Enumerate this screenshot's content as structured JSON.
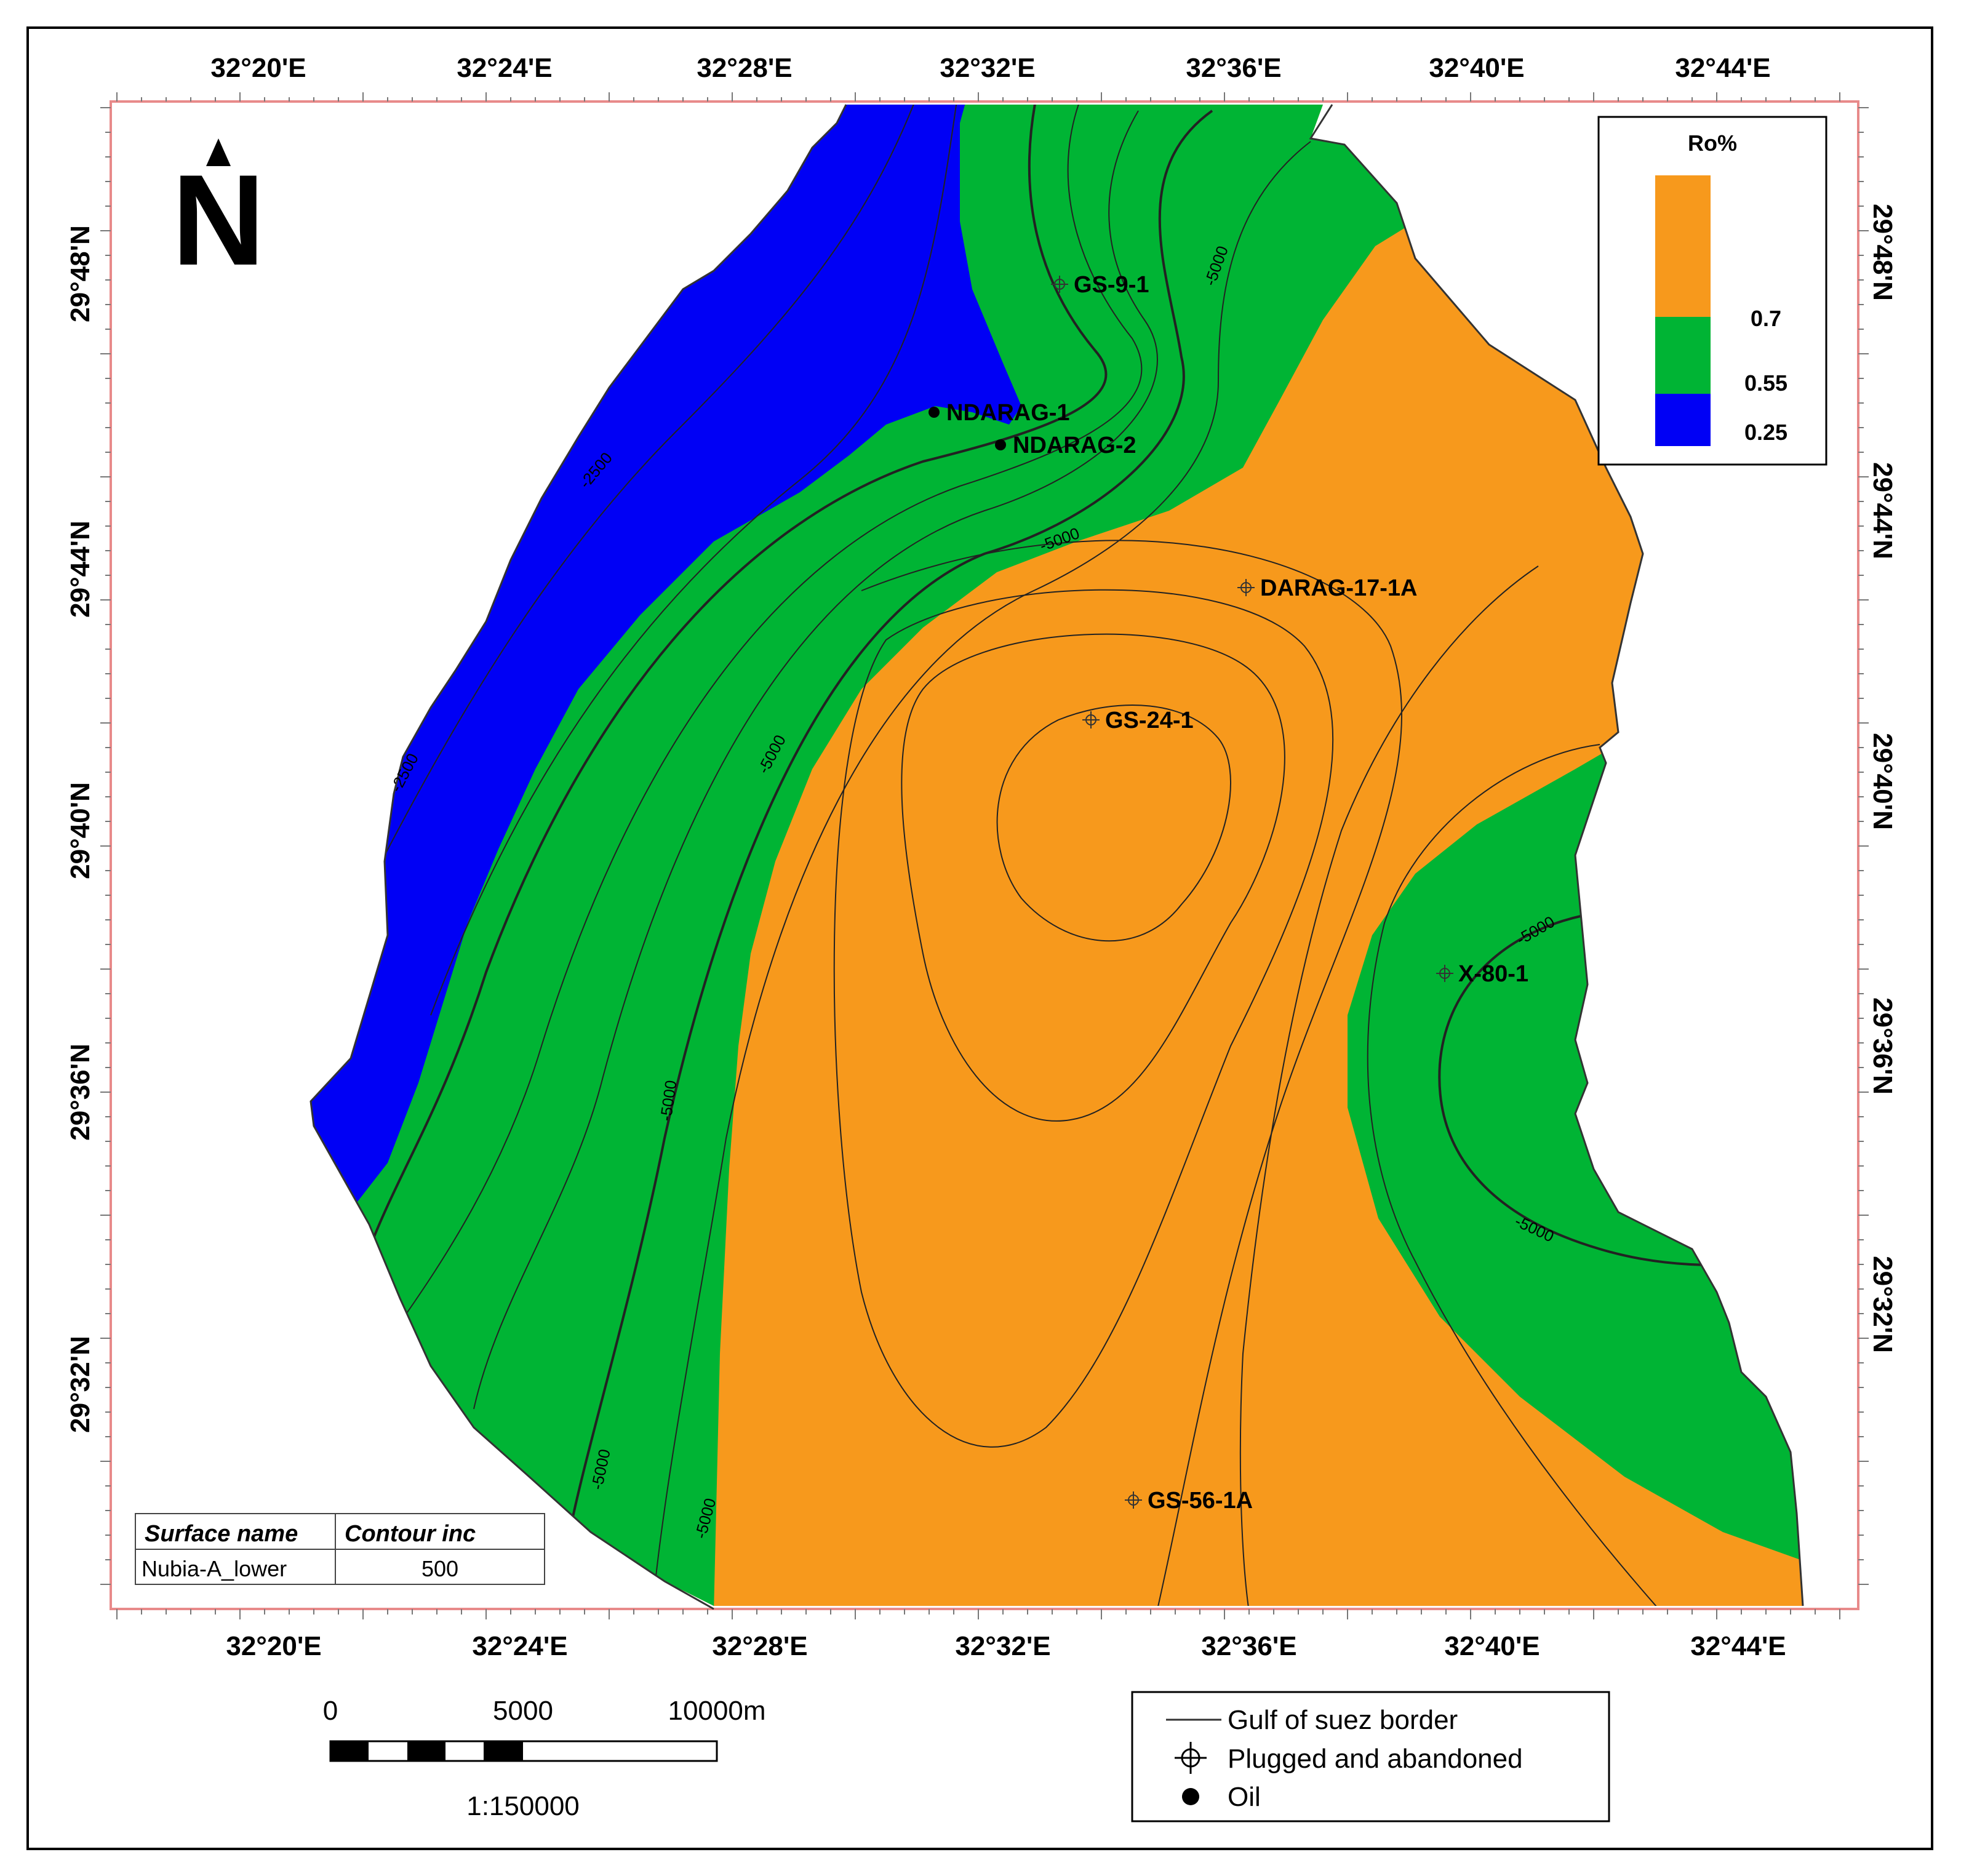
{
  "axes": {
    "top_longitudes": [
      "32°20'E",
      "32°24'E",
      "32°28'E",
      "32°32'E",
      "32°36'E",
      "32°40'E",
      "32°44'E"
    ],
    "bottom_longitudes": [
      "32°20'E",
      "32°24'E",
      "32°28'E",
      "32°32'E",
      "32°36'E",
      "32°40'E",
      "32°44'E"
    ],
    "left_latitudes": [
      "29°48'N",
      "29°44'N",
      "29°40'N",
      "29°36'N",
      "29°32'N"
    ],
    "right_latitudes": [
      "29°48'N",
      "29°44'N",
      "29°40'N",
      "29°36'N",
      "29°32'N"
    ]
  },
  "north_arrow": {
    "label": "N"
  },
  "ro_legend": {
    "title": "Ro%",
    "breaks": [
      "0.7",
      "0.55",
      "0.25"
    ],
    "colors": {
      "high": "#F7991C",
      "mid": "#00B434",
      "low": "#0000F5"
    }
  },
  "wells": [
    {
      "name": "GS-9-1",
      "type": "plugged"
    },
    {
      "name": "NDARAG-1",
      "type": "oil"
    },
    {
      "name": "NDARAG-2",
      "type": "oil"
    },
    {
      "name": "DARAG-17-1A",
      "type": "plugged"
    },
    {
      "name": "GS-24-1",
      "type": "plugged"
    },
    {
      "name": "X-80-1",
      "type": "plugged"
    },
    {
      "name": "GS-56-1A",
      "type": "plugged"
    }
  ],
  "contour_labels": [
    "-2500",
    "-2500",
    "-5000",
    "-5000",
    "-5000",
    "-5000",
    "-5000",
    "-5000",
    "-5000",
    "-5000"
  ],
  "surface_table": {
    "headers": [
      "Surface name",
      "Contour inc"
    ],
    "values": [
      "Nubia-A_lower",
      "500"
    ]
  },
  "scale_bar": {
    "ticks": [
      "0",
      "5000",
      "10000m"
    ],
    "ratio": "1:150000"
  },
  "map_legend": {
    "border_label": "Gulf of suez border",
    "plugged_label": "Plugged and abandoned",
    "oil_label": "Oil"
  }
}
